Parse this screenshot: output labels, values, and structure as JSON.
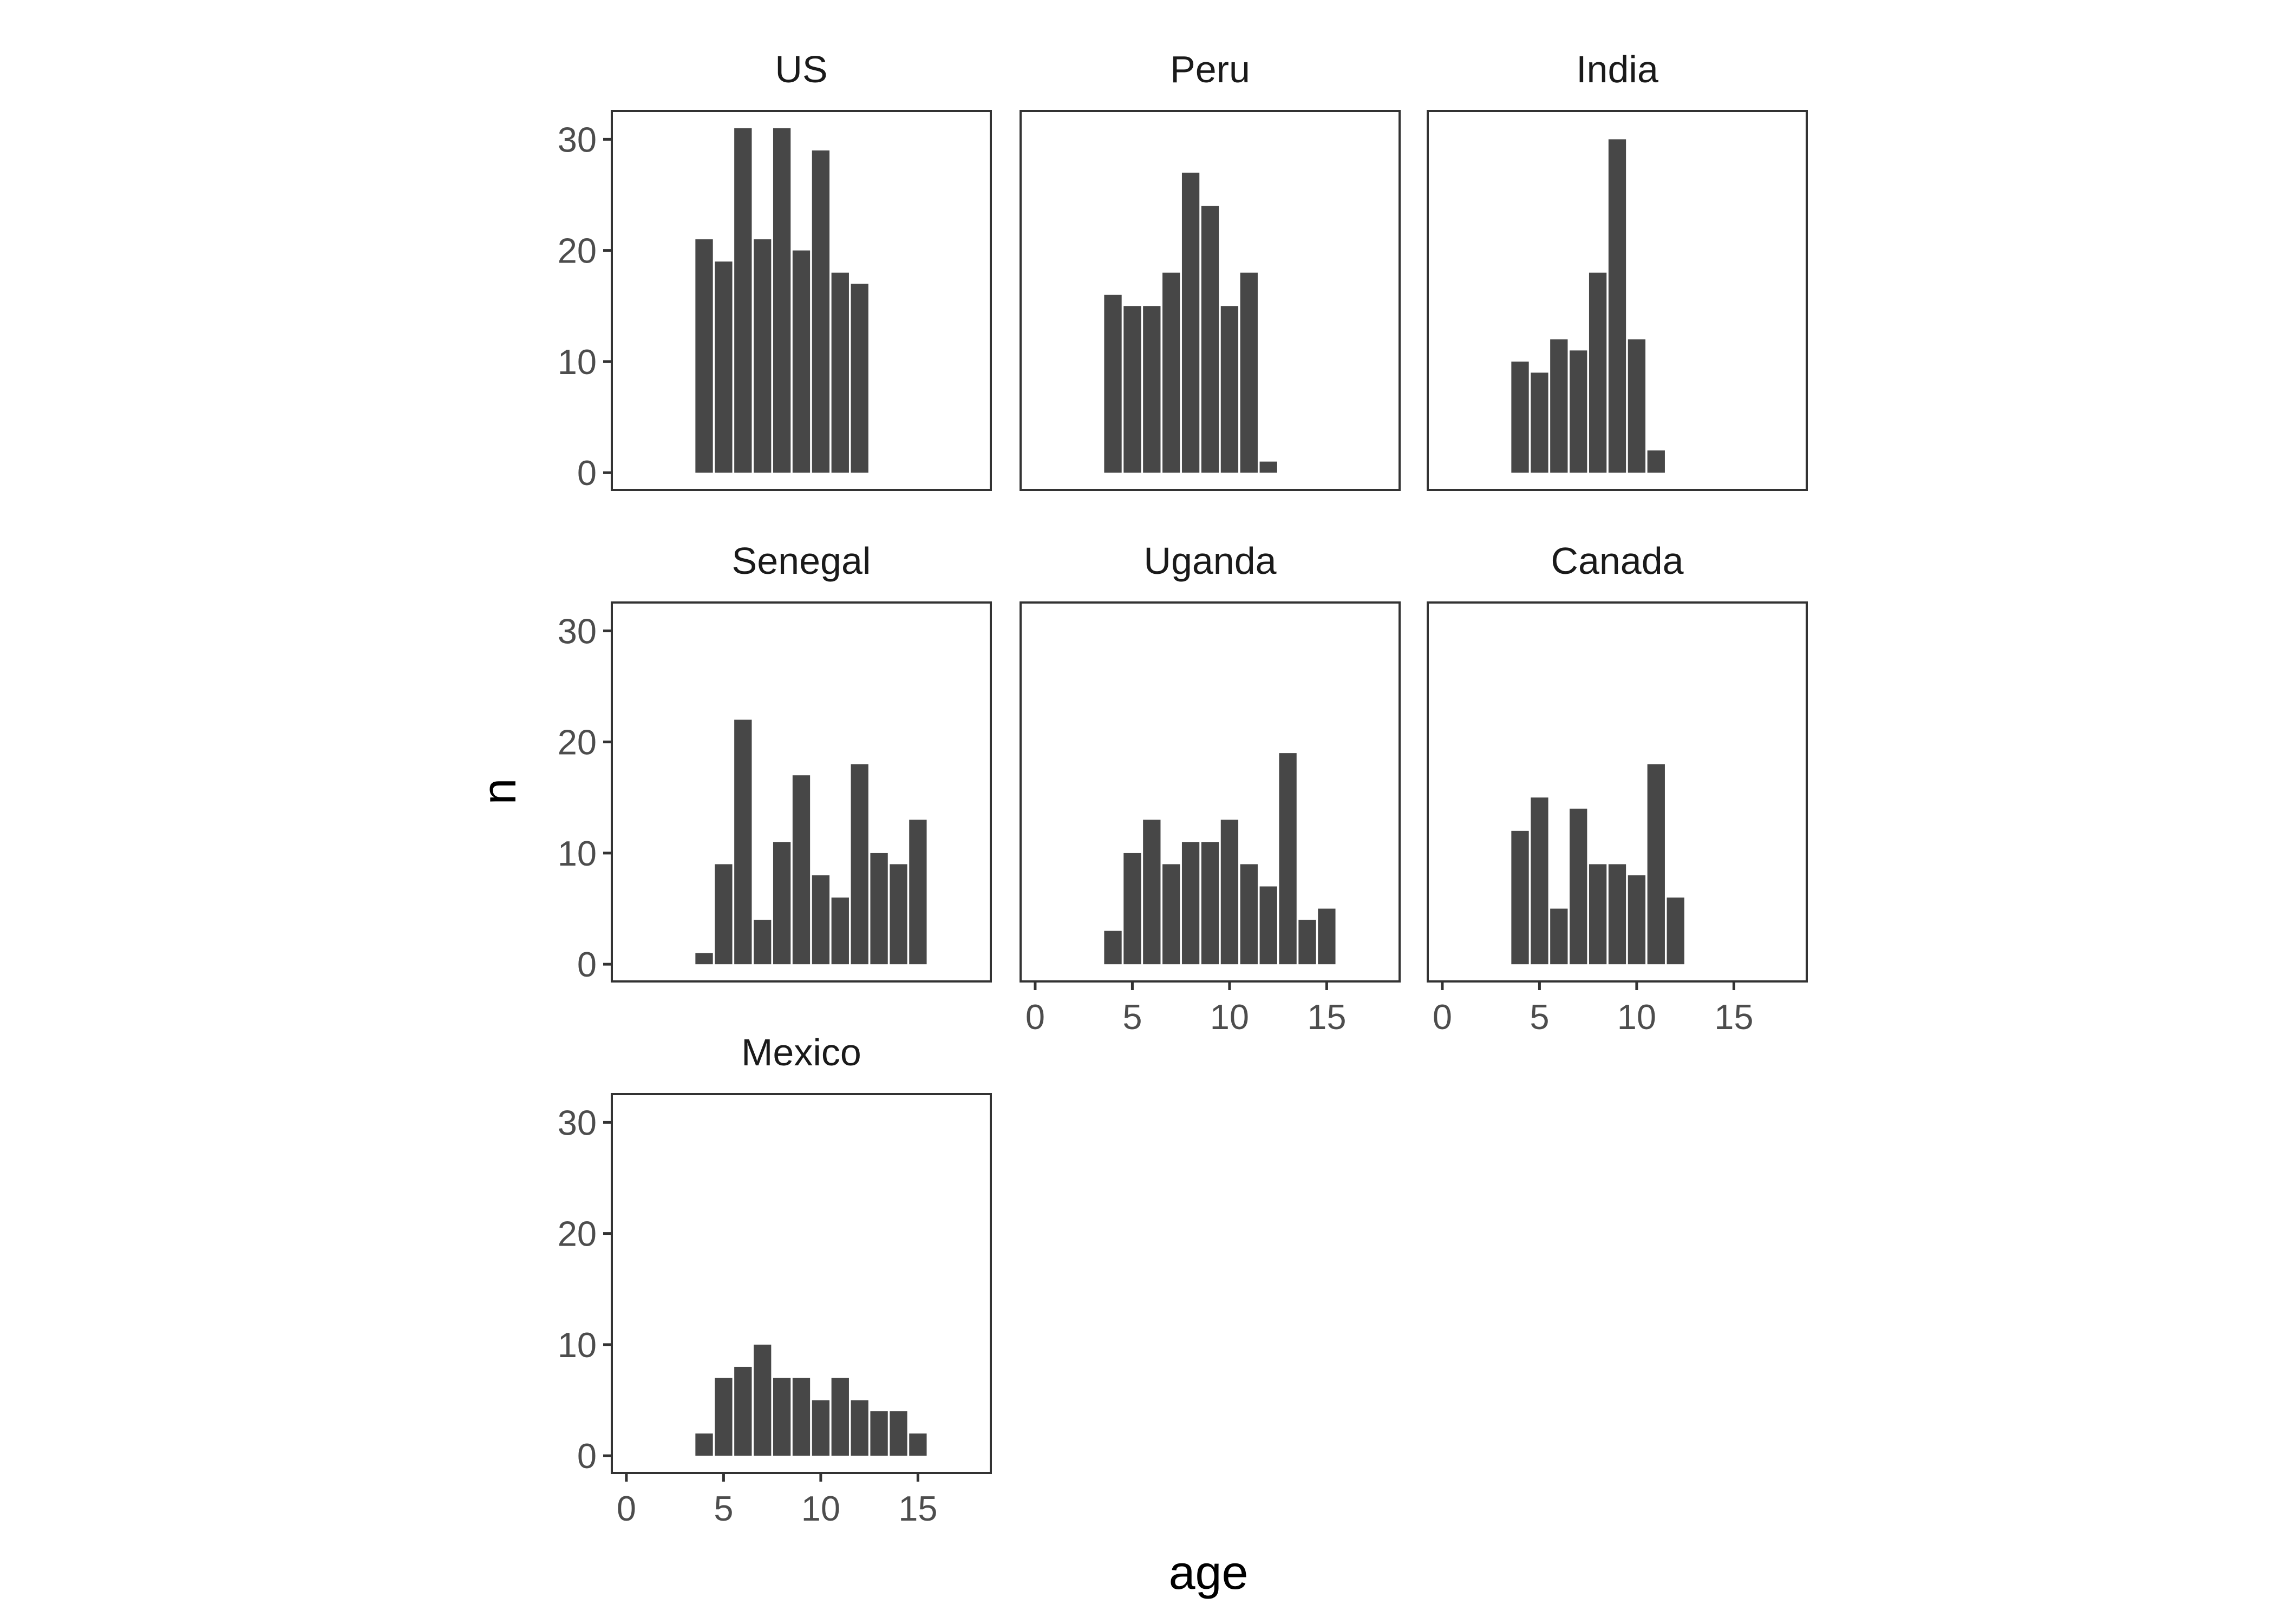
{
  "chart_data": {
    "type": "bar",
    "xlabel": "age",
    "ylabel": "n",
    "xlim": [
      -0.75,
      18.75
    ],
    "ylim": [
      -1.55,
      32.55
    ],
    "xticks": [
      0,
      5,
      10,
      15
    ],
    "yticks": [
      0,
      10,
      20,
      30
    ],
    "grid": false,
    "bar_color": "#474747",
    "panels": [
      {
        "name": "US",
        "x": [
          4,
          5,
          6,
          7,
          8,
          9,
          10,
          11,
          12
        ],
        "values": [
          21,
          19,
          31,
          21,
          31,
          20,
          29,
          18,
          17
        ]
      },
      {
        "name": "Peru",
        "x": [
          4,
          5,
          6,
          7,
          8,
          9,
          10,
          11,
          12
        ],
        "values": [
          16,
          15,
          15,
          18,
          27,
          24,
          15,
          18,
          1
        ]
      },
      {
        "name": "India",
        "x": [
          4,
          5,
          6,
          7,
          8,
          9,
          10,
          11
        ],
        "values": [
          10,
          9,
          12,
          11,
          18,
          30,
          12,
          2
        ]
      },
      {
        "name": "Senegal",
        "x": [
          4,
          5,
          6,
          7,
          8,
          9,
          10,
          11,
          12,
          13,
          14,
          15
        ],
        "values": [
          1,
          9,
          22,
          4,
          11,
          17,
          8,
          6,
          18,
          10,
          9,
          13
        ]
      },
      {
        "name": "Uganda",
        "x": [
          4,
          5,
          6,
          7,
          8,
          9,
          10,
          11,
          12,
          13,
          14,
          15
        ],
        "values": [
          3,
          10,
          13,
          9,
          11,
          11,
          13,
          9,
          7,
          19,
          4,
          5
        ]
      },
      {
        "name": "Canada",
        "x": [
          4,
          5,
          6,
          7,
          8,
          9,
          10,
          11,
          12
        ],
        "values": [
          12,
          15,
          5,
          14,
          9,
          9,
          8,
          18,
          6
        ]
      },
      {
        "name": "Mexico",
        "x": [
          4,
          5,
          6,
          7,
          8,
          9,
          10,
          11,
          12,
          13,
          14,
          15
        ],
        "values": [
          2,
          7,
          8,
          10,
          7,
          7,
          5,
          7,
          5,
          4,
          4,
          2
        ]
      }
    ]
  }
}
